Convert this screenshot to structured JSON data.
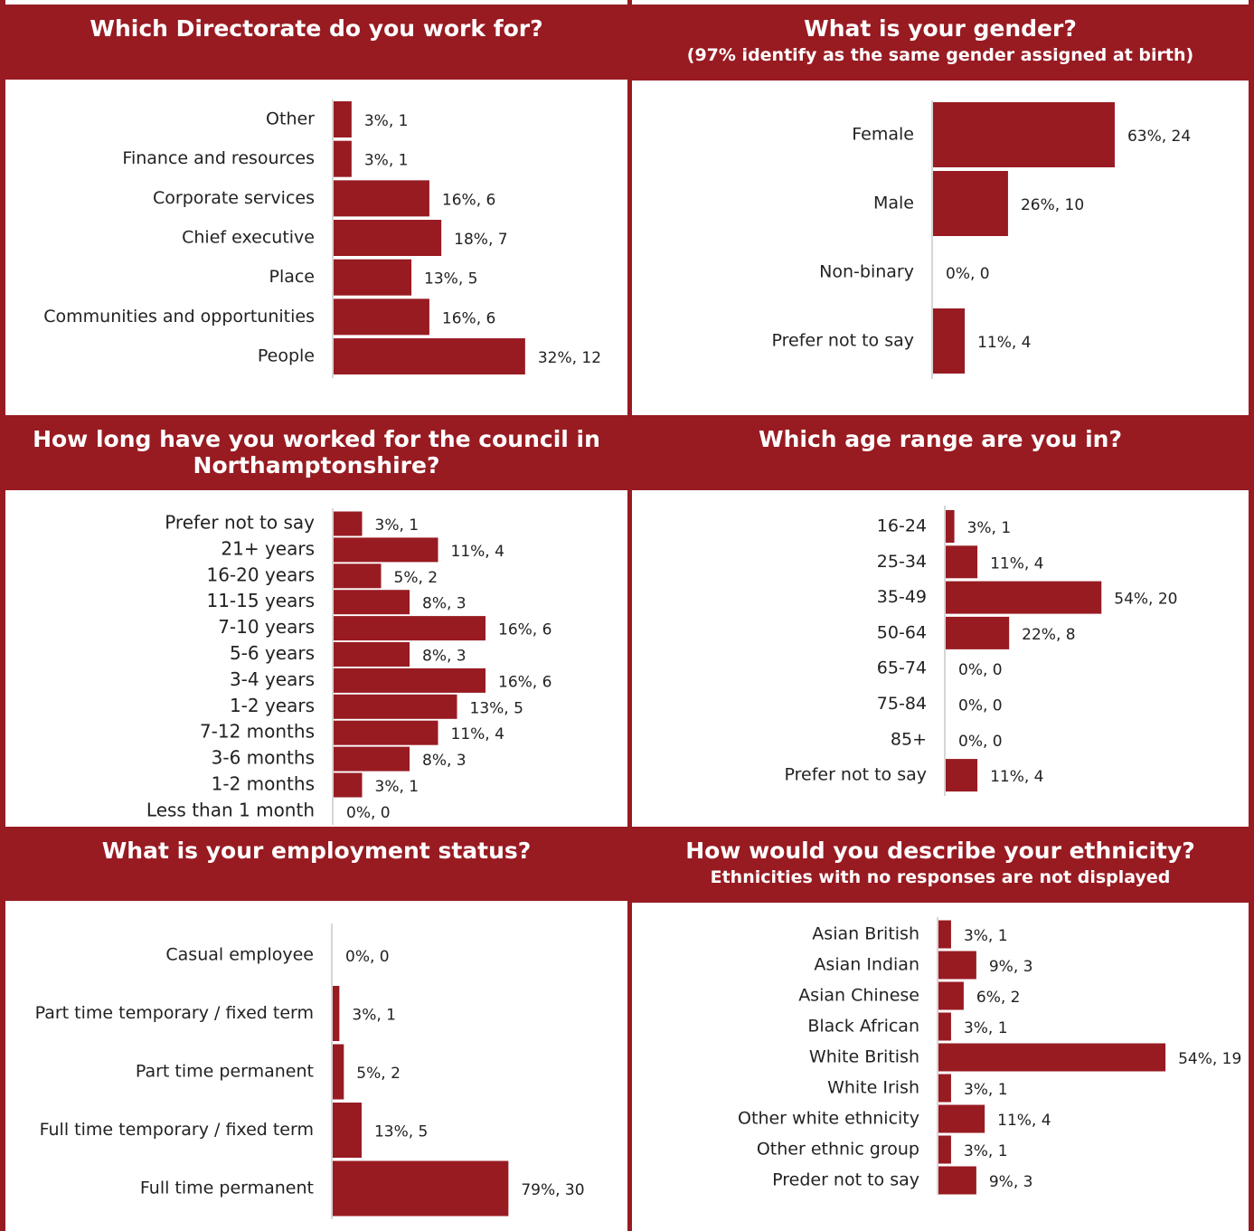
{
  "colors": {
    "accent": "#981b22",
    "text": "#222222",
    "axis": "#c8c8c8"
  },
  "panels": [
    {
      "title": "Which Directorate do you work for?",
      "subtitle": ""
    },
    {
      "title": "What is your gender?",
      "subtitle": "(97% identify as the same gender assigned at birth)"
    },
    {
      "title": "How long have you worked for the council in Northamptonshire?",
      "subtitle": ""
    },
    {
      "title": "Which age range are you in?",
      "subtitle": ""
    },
    {
      "title": "What is your employment status?",
      "subtitle": ""
    },
    {
      "title": "How would you describe your ethnicity?",
      "subtitle": "Ethnicities with no responses are not displayed"
    }
  ],
  "chart_data": [
    {
      "type": "bar",
      "orientation": "horizontal",
      "title": "Which Directorate do you work for?",
      "categories": [
        "Other",
        "Finance and resources",
        "Corporate services",
        "Chief executive",
        "Place",
        "Communities and opportunities",
        "People"
      ],
      "values": [
        3,
        3,
        16,
        18,
        13,
        16,
        32
      ],
      "counts": [
        1,
        1,
        6,
        7,
        5,
        6,
        12
      ],
      "data_labels": [
        "3%, 1",
        "3%, 1",
        "16%, 6",
        "18%, 7",
        "13%, 5",
        "16%, 6",
        "32%, 12"
      ],
      "value_unit": "%"
    },
    {
      "type": "bar",
      "orientation": "horizontal",
      "title": "What is your gender?",
      "subtitle": "(97% identify as the same gender assigned at birth)",
      "categories": [
        "Female",
        "Male",
        "Non-binary",
        "Prefer not to say"
      ],
      "values": [
        63,
        26,
        0,
        11
      ],
      "counts": [
        24,
        10,
        0,
        4
      ],
      "data_labels": [
        "63%, 24",
        "26%, 10",
        "0%, 0",
        "11%, 4"
      ],
      "value_unit": "%"
    },
    {
      "type": "bar",
      "orientation": "horizontal",
      "title": "How long have you worked for the council in Northamptonshire?",
      "categories": [
        "Prefer not to say",
        "21+ years",
        "16-20 years",
        "11-15 years",
        "7-10 years",
        "5-6 years",
        "3-4 years",
        "1-2 years",
        "7-12 months",
        "3-6 months",
        "1-2 months",
        "Less than 1 month"
      ],
      "values": [
        3,
        11,
        5,
        8,
        16,
        8,
        16,
        13,
        11,
        8,
        3,
        0
      ],
      "counts": [
        1,
        4,
        2,
        3,
        6,
        3,
        6,
        5,
        4,
        3,
        1,
        0
      ],
      "data_labels": [
        "3%, 1",
        "11%, 4",
        "5%, 2",
        "8%, 3",
        "16%, 6",
        "8%, 3",
        "16%, 6",
        "13%, 5",
        "11%, 4",
        "8%, 3",
        "3%, 1",
        "0%, 0"
      ],
      "value_unit": "%"
    },
    {
      "type": "bar",
      "orientation": "horizontal",
      "title": "Which age range are you in?",
      "categories": [
        "16-24",
        "25-34",
        "35-49",
        "50-64",
        "65-74",
        "75-84",
        "85+",
        "Prefer not to say"
      ],
      "values": [
        3,
        11,
        54,
        22,
        0,
        0,
        0,
        11
      ],
      "counts": [
        1,
        4,
        20,
        8,
        0,
        0,
        0,
        4
      ],
      "data_labels": [
        "3%, 1",
        "11%, 4",
        "54%, 20",
        "22%, 8",
        "0%, 0",
        "0%, 0",
        "0%, 0",
        "11%, 4"
      ],
      "value_unit": "%"
    },
    {
      "type": "bar",
      "orientation": "horizontal",
      "title": "What is your employment status?",
      "categories": [
        "Casual employee",
        "Part time temporary / fixed term",
        "Part time permanent",
        "Full time temporary / fixed term",
        "Full time permanent"
      ],
      "values": [
        0,
        3,
        5,
        13,
        79
      ],
      "counts": [
        0,
        1,
        2,
        5,
        30
      ],
      "data_labels": [
        "0%, 0",
        "3%, 1",
        "5%, 2",
        "13%, 5",
        "79%, 30"
      ],
      "value_unit": "%"
    },
    {
      "type": "bar",
      "orientation": "horizontal",
      "title": "How would you describe your ethnicity?",
      "subtitle": "Ethnicities with no responses are not displayed",
      "categories": [
        "Asian British",
        "Asian Indian",
        "Asian Chinese",
        "Black African",
        "White British",
        "White Irish",
        "Other white ethnicity",
        "Other ethnic group",
        "Preder not to say"
      ],
      "values": [
        3,
        9,
        6,
        3,
        54,
        3,
        11,
        3,
        9
      ],
      "counts": [
        1,
        3,
        2,
        1,
        19,
        1,
        4,
        1,
        3
      ],
      "data_labels": [
        "3%, 1",
        "9%, 3",
        "6%, 2",
        "3%, 1",
        "54%, 19",
        "3%, 1",
        "11%, 4",
        "3%, 1",
        "9%, 3"
      ],
      "value_unit": "%"
    }
  ]
}
